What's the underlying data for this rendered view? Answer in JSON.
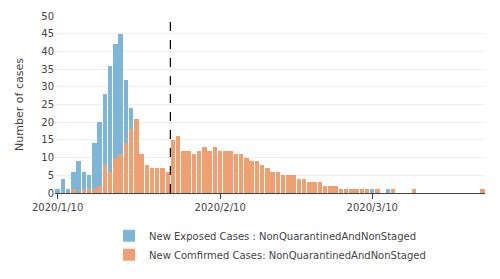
{
  "chart_data": {
    "type": "bar",
    "categories": [
      "2020/1/10",
      null,
      null,
      null,
      null,
      null,
      null,
      null,
      null,
      null,
      null,
      null,
      null,
      null,
      null,
      null,
      null,
      null,
      null,
      null,
      null,
      null,
      null,
      null,
      null,
      null,
      null,
      null,
      null,
      null,
      null,
      "2020/2/10",
      null,
      null,
      null,
      null,
      null,
      null,
      null,
      null,
      null,
      null,
      null,
      null,
      null,
      null,
      null,
      null,
      null,
      null,
      null,
      null,
      null,
      null,
      null,
      null,
      null,
      null,
      null,
      null,
      "2020/3/10",
      null,
      null,
      null,
      null,
      null,
      null,
      null,
      null,
      null,
      null,
      null,
      null,
      null,
      null,
      null,
      null,
      null,
      null,
      null,
      null,
      null
    ],
    "series": [
      {
        "name": "New Exposed Cases : NonQuarantinedAndNonStaged",
        "color": "#7EB6D9",
        "values": [
          1,
          4,
          1,
          6,
          9,
          6,
          5,
          14,
          20,
          28,
          36,
          42,
          45,
          32,
          24,
          8,
          10,
          8,
          6,
          6,
          5,
          5,
          8,
          9,
          10,
          11,
          10,
          11,
          10,
          11,
          13,
          12,
          11,
          10,
          10,
          10,
          9,
          8,
          7,
          7,
          6,
          6,
          5,
          5,
          4,
          3,
          3,
          2,
          2,
          2,
          2,
          1,
          2,
          1,
          1,
          1,
          1,
          1,
          0,
          1,
          1,
          0,
          0,
          1,
          0,
          0,
          0,
          0,
          0,
          0,
          0,
          0,
          0,
          0,
          0,
          0,
          0,
          0,
          0,
          0,
          0,
          0
        ]
      },
      {
        "name": "New Comfirmed Cases: NonQuarantinedAndNonStaged",
        "color": "#F0A070",
        "values": [
          0,
          0,
          0,
          1,
          0,
          1,
          1,
          1,
          2,
          8,
          6,
          10,
          11,
          14,
          18,
          21,
          11,
          8,
          7,
          7,
          7,
          6,
          15,
          16,
          12,
          12,
          11,
          12,
          13,
          12,
          13,
          12,
          12,
          12,
          11,
          11,
          10,
          9,
          9,
          8,
          7,
          6,
          6,
          5,
          5,
          5,
          4,
          4,
          3,
          3,
          3,
          2,
          2,
          2,
          1,
          1,
          1,
          1,
          1,
          1,
          0,
          1,
          0,
          0,
          1,
          0,
          0,
          0,
          1,
          0,
          0,
          0,
          0,
          0,
          0,
          0,
          0,
          0,
          0,
          0,
          0,
          1
        ]
      }
    ],
    "ylabel": "Number of cases",
    "ylim": [
      0,
      50
    ],
    "yticks": [
      0,
      5,
      10,
      15,
      20,
      25,
      30,
      35,
      40,
      45,
      50
    ],
    "grid": true,
    "legend": "bottom",
    "vline": {
      "between": [
        21,
        22
      ],
      "line_style": "dashed"
    }
  }
}
